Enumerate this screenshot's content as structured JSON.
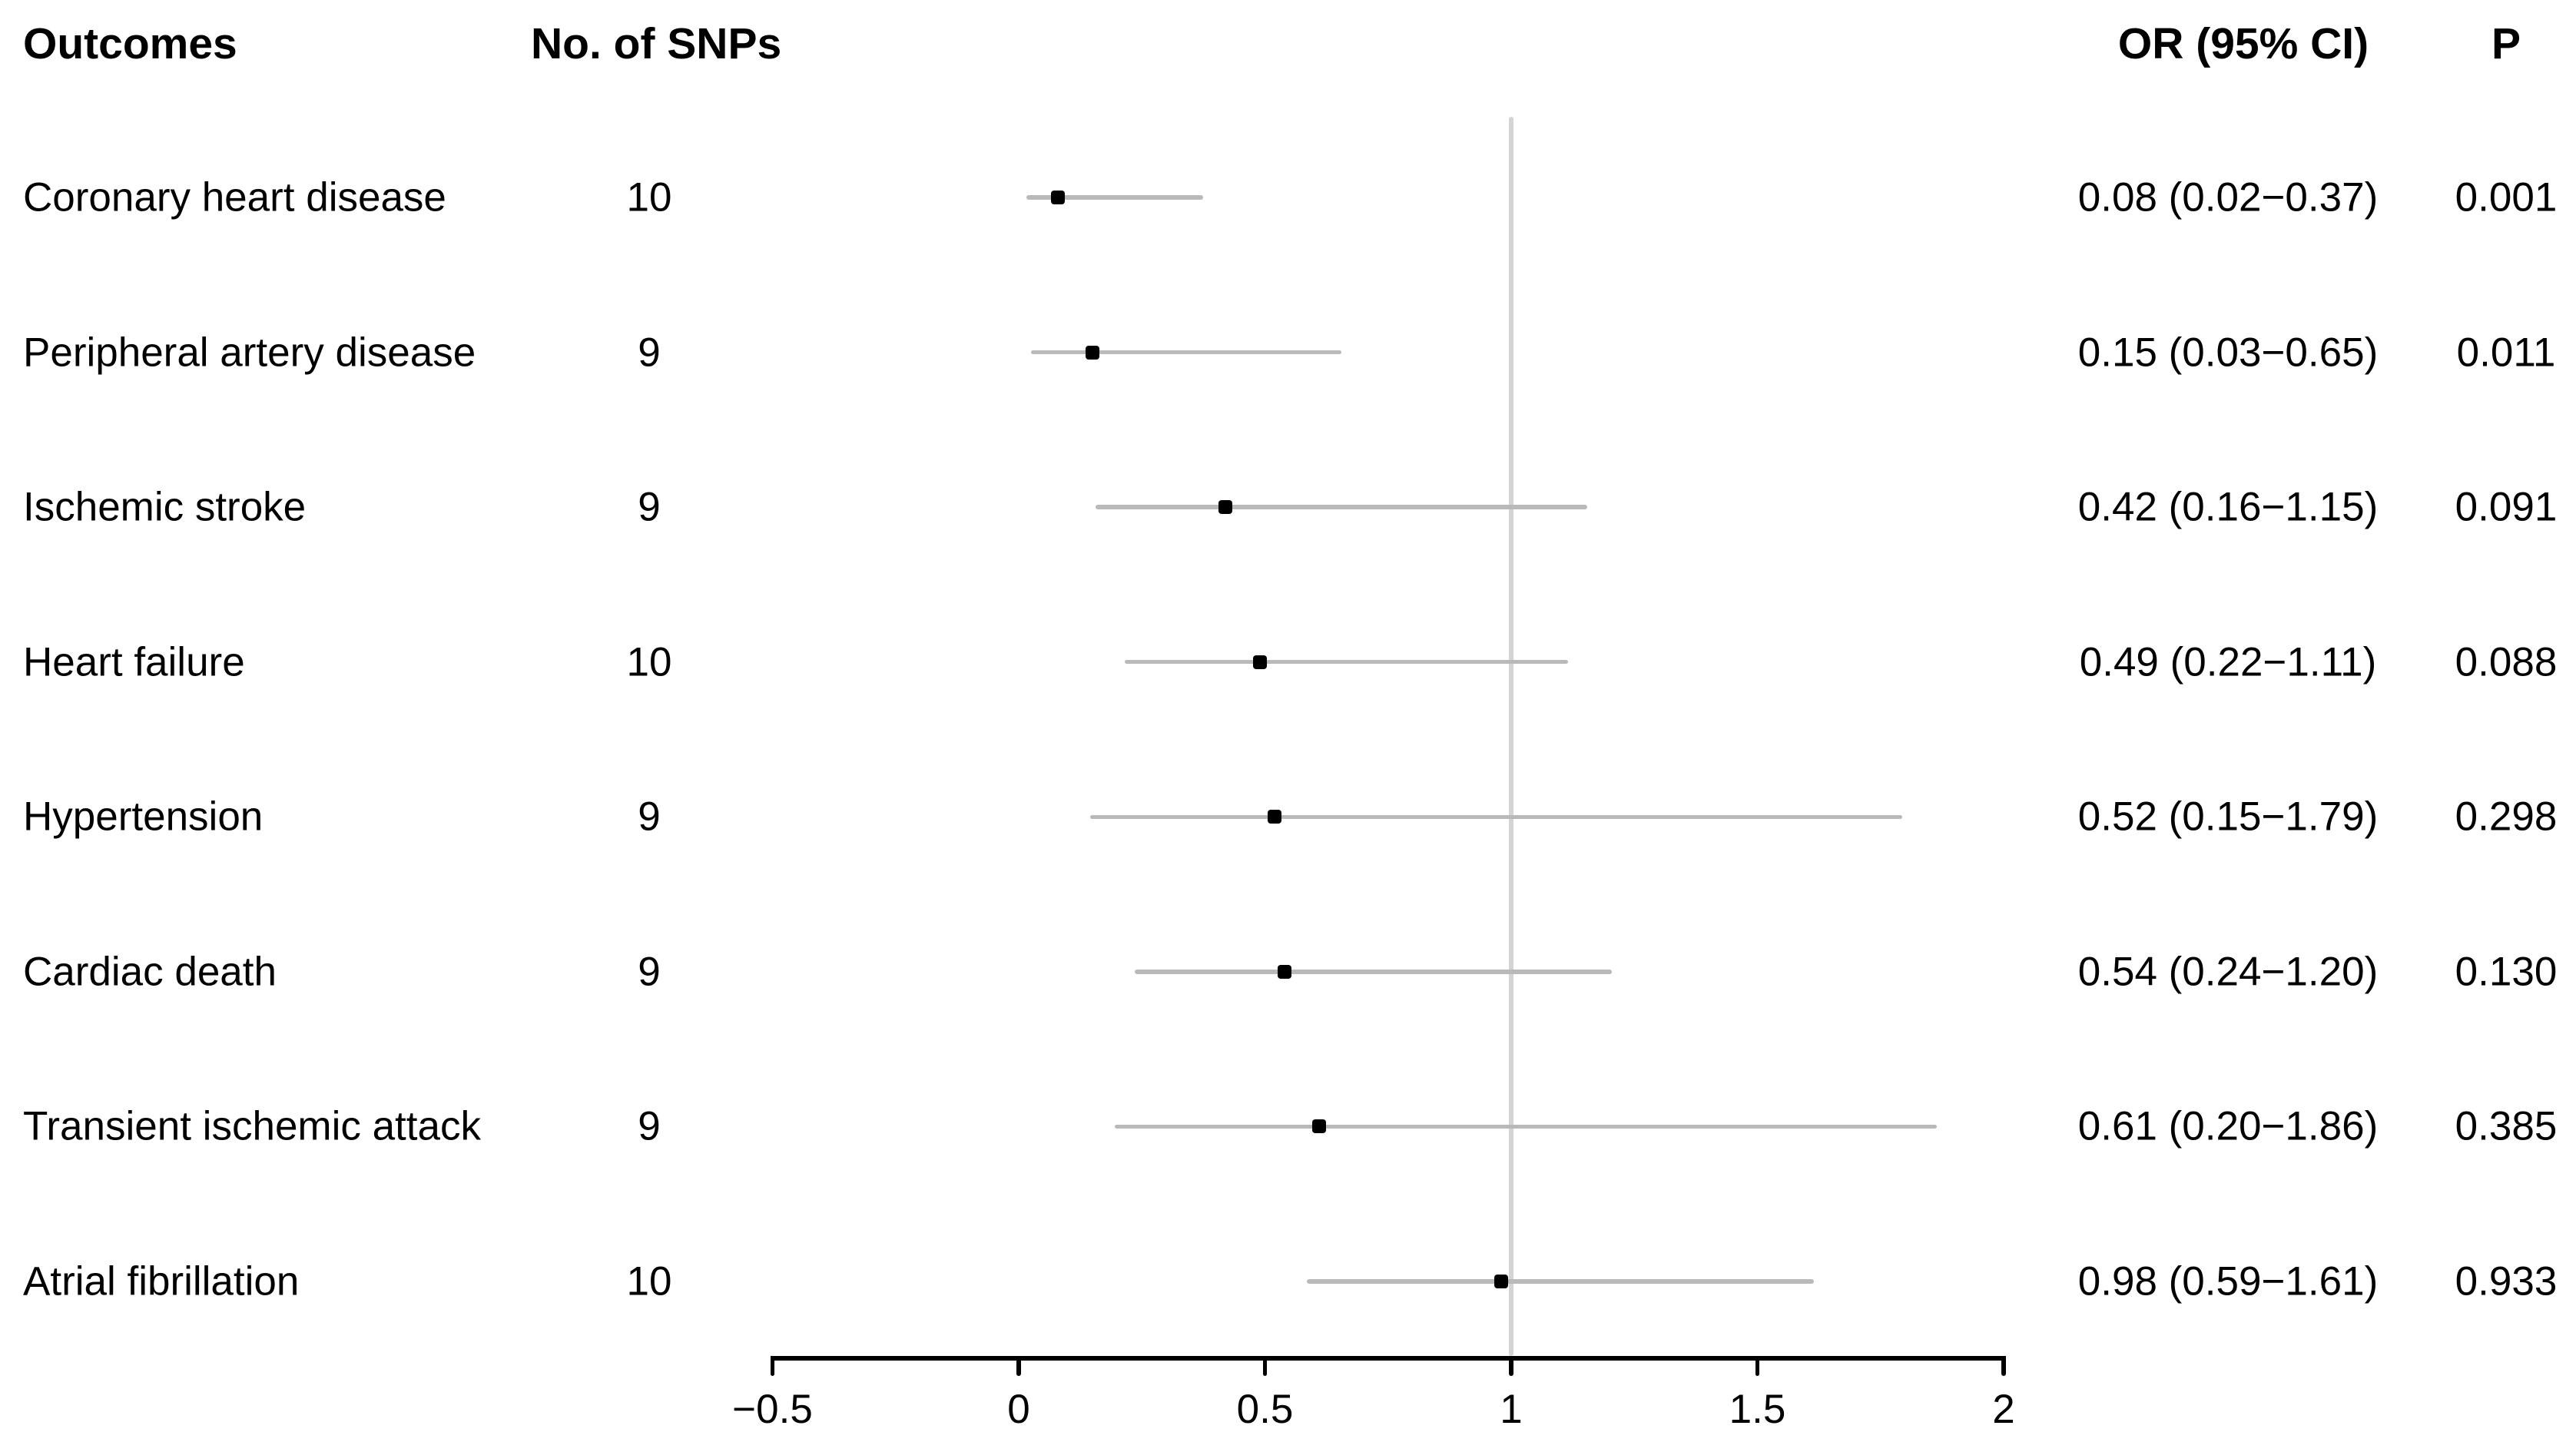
{
  "table": {
    "headers": {
      "outcome": "Outcomes",
      "snps": "No. of SNPs",
      "or_ci": "OR (95% CI)",
      "p": "P"
    }
  },
  "chart_data": {
    "type": "scatter",
    "subtype": "forest-plot",
    "title": "",
    "xlabel": "",
    "legend": null,
    "grid": "off",
    "x_axis": {
      "scale": "linear",
      "range": [
        -0.5,
        2
      ],
      "tick_values": [
        -0.5,
        0,
        0.5,
        1,
        1.5,
        2
      ],
      "tick_labels": [
        "−0.5",
        "0",
        "0.5",
        "1",
        "1.5",
        "2"
      ]
    },
    "reference_line_x": 1,
    "rows": [
      {
        "outcome": "Coronary heart disease",
        "snps": "10",
        "or": 0.08,
        "ci_low": 0.02,
        "ci_high": 0.37,
        "or_ci": "0.08 (0.02−0.37)",
        "p": "0.001"
      },
      {
        "outcome": "Peripheral artery disease",
        "snps": "9",
        "or": 0.15,
        "ci_low": 0.03,
        "ci_high": 0.65,
        "or_ci": "0.15 (0.03−0.65)",
        "p": "0.011"
      },
      {
        "outcome": "Ischemic stroke",
        "snps": "9",
        "or": 0.42,
        "ci_low": 0.16,
        "ci_high": 1.15,
        "or_ci": "0.42 (0.16−1.15)",
        "p": "0.091"
      },
      {
        "outcome": "Heart failure",
        "snps": "10",
        "or": 0.49,
        "ci_low": 0.22,
        "ci_high": 1.11,
        "or_ci": "0.49 (0.22−1.11)",
        "p": "0.088"
      },
      {
        "outcome": "Hypertension",
        "snps": "9",
        "or": 0.52,
        "ci_low": 0.15,
        "ci_high": 1.79,
        "or_ci": "0.52 (0.15−1.79)",
        "p": "0.298"
      },
      {
        "outcome": "Cardiac death",
        "snps": "9",
        "or": 0.54,
        "ci_low": 0.24,
        "ci_high": 1.2,
        "or_ci": "0.54 (0.24−1.20)",
        "p": "0.130"
      },
      {
        "outcome": "Transient ischemic attack",
        "snps": "9",
        "or": 0.61,
        "ci_low": 0.2,
        "ci_high": 1.86,
        "or_ci": "0.61 (0.20−1.86)",
        "p": "0.385"
      },
      {
        "outcome": "Atrial fibrillation",
        "snps": "10",
        "or": 0.98,
        "ci_low": 0.59,
        "ci_high": 1.61,
        "or_ci": "0.98 (0.59−1.61)",
        "p": "0.933"
      }
    ],
    "colors": {
      "marker": "#000000",
      "ci_line": "#b9b9b9",
      "reference_line": "#d4d4d4",
      "axis": "#000000",
      "text": "#000000",
      "background": "#ffffff"
    }
  }
}
